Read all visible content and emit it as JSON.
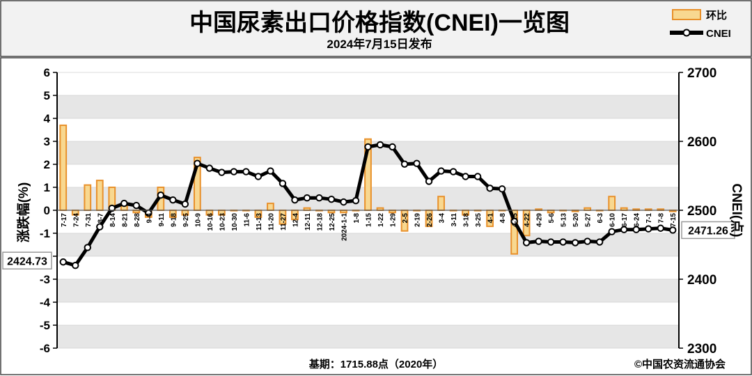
{
  "header": {
    "title": "中国尿素出口价格指数(CNEI)一览图",
    "subtitle": "2024年7月15日发布"
  },
  "legend": {
    "items": [
      {
        "label": "环比",
        "kind": "bar"
      },
      {
        "label": "CNEI",
        "kind": "line"
      }
    ],
    "placement": "top-right"
  },
  "footer": {
    "base_note": "基期：1715.88点（2020年）",
    "copyright": "©中国农资流通协会"
  },
  "colors": {
    "bar_fill": "#f8d890",
    "bar_stroke": "#e8902a",
    "line": "#000000",
    "header_bg": "#f2f2f2",
    "grid_band": "#e6e6e6"
  },
  "chart_data": {
    "type": "bar+line",
    "categories": [
      "7-17",
      "7-24",
      "7-31",
      "8-7",
      "8-14",
      "8-21",
      "8-28",
      "9-4",
      "9-11",
      "9-18",
      "9-25",
      "10-9",
      "10-16",
      "10-23",
      "10-30",
      "11-6",
      "11-13",
      "11-20",
      "11-27",
      "12-4",
      "12-11",
      "12-18",
      "12-25",
      "2024-1-1",
      "1-8",
      "1-15",
      "1-22",
      "1-29",
      "2-5",
      "2-19",
      "2-26",
      "3-4",
      "3-11",
      "3-18",
      "3-25",
      "4-1",
      "4-8",
      "4-15",
      "4-22",
      "4-29",
      "5-6",
      "5-13",
      "5-20",
      "5-27",
      "6-3",
      "6-10",
      "6-17",
      "6-24",
      "7-1",
      "7-8",
      "7-15"
    ],
    "tick_labels": [
      "7-17",
      "7-24",
      "7-31",
      "8-7",
      "8-14",
      "8-21",
      "8-28",
      "9-4",
      "9-11",
      "9-18",
      "9-25",
      "10-9",
      "10-16",
      "10-23",
      "10-30",
      "11-6",
      "11-13",
      "11-20",
      "11-27",
      "12-4",
      "12-11",
      "12-18",
      "12-25",
      "2024-1-1",
      "1-8",
      "1-15",
      "1-22",
      "1-29",
      "2-5",
      "2-19",
      "2-26",
      "3-4",
      "3-11",
      "3-18",
      "3-25",
      "4-1",
      "4-8",
      "4-15",
      "4-22",
      "4-29",
      "5-6",
      "5-13",
      "5-20",
      "5-27",
      "6-3",
      "6-10",
      "6-17",
      "6-24",
      "7-1",
      "7-8",
      "7-15"
    ],
    "series": [
      {
        "name": "环比",
        "type": "bar",
        "axis": "left",
        "values": [
          3.7,
          -0.2,
          1.1,
          1.3,
          1.0,
          0.2,
          -0.1,
          -0.3,
          1.0,
          -0.3,
          -0.2,
          2.3,
          -0.2,
          -0.2,
          0.0,
          0.0,
          -0.3,
          0.3,
          -0.6,
          -0.4,
          0.1,
          0.0,
          -0.1,
          -0.1,
          0.0,
          3.1,
          0.1,
          -0.1,
          -0.9,
          0.0,
          -0.7,
          0.6,
          0.0,
          -0.2,
          0.0,
          -0.7,
          0.0,
          -1.9,
          -1.1,
          0.05,
          -0.1,
          0.0,
          -0.05,
          0.1,
          0.0,
          0.6,
          0.1,
          0.05,
          0.05,
          0.05,
          -0.05
        ]
      },
      {
        "name": "CNEI",
        "type": "line",
        "axis": "right",
        "values": [
          2425,
          2420,
          2446,
          2476,
          2503,
          2510,
          2507,
          2496,
          2522,
          2515,
          2509,
          2568,
          2561,
          2555,
          2556,
          2556,
          2549,
          2557,
          2539,
          2515,
          2518,
          2518,
          2516,
          2512,
          2514,
          2592,
          2595,
          2592,
          2567,
          2568,
          2542,
          2557,
          2556,
          2549,
          2549,
          2532,
          2531,
          2484,
          2453,
          2455,
          2454,
          2454,
          2453,
          2455,
          2454,
          2469,
          2472,
          2472,
          2473,
          2474,
          2471.26
        ]
      }
    ],
    "first_value_label": "2424.73",
    "last_value_label": "2471.26",
    "left_axis": {
      "label": "涨跌幅(%)",
      "range": [
        -6,
        6
      ],
      "ticks": [
        "6",
        "5",
        "4",
        "3",
        "2",
        "1",
        "0",
        "-1",
        "-2",
        "-3",
        "-4",
        "-5",
        "-6"
      ]
    },
    "right_axis": {
      "label": "CNEI(点)",
      "range": [
        2300,
        2700
      ],
      "ticks": [
        "2700",
        "2600",
        "2500",
        "2400",
        "2300"
      ]
    },
    "grid": "horizontal bands"
  }
}
